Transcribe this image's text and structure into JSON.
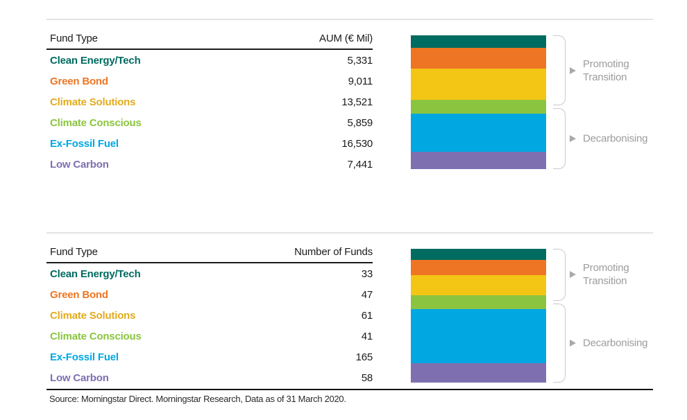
{
  "categories": [
    {
      "label": "Clean Energy/Tech",
      "color": "#006b60",
      "label_color": "#006b60"
    },
    {
      "label": "Green Bond",
      "color": "#ee7523",
      "label_color": "#ee7523"
    },
    {
      "label": "Climate Solutions",
      "color": "#f3c515",
      "label_color": "#e2ab1d"
    },
    {
      "label": "Climate Conscious",
      "color": "#8bc540",
      "label_color": "#8bc540"
    },
    {
      "label": "Ex-Fossil Fuel",
      "color": "#00a7e1",
      "label_color": "#00a7e1"
    },
    {
      "label": "Low Carbon",
      "color": "#7e6fb0",
      "label_color": "#7e6fb0"
    }
  ],
  "chart_data": [
    {
      "type": "bar",
      "stacked": true,
      "title": "",
      "table_columns": [
        "Fund Type",
        "AUM (€ Mil)"
      ],
      "categories": [
        "Clean Energy/Tech",
        "Green Bond",
        "Climate Solutions",
        "Climate Conscious",
        "Ex-Fossil Fuel",
        "Low Carbon"
      ],
      "values": [
        5331,
        9011,
        13521,
        5859,
        16530,
        7441
      ],
      "values_formatted": [
        "5,331",
        "9,011",
        "13,521",
        "5,859",
        "16,530",
        "7,441"
      ],
      "legend_position": "table-left",
      "groups": [
        {
          "label": "Promoting Transition",
          "label_display": "Promoting\nTransition",
          "seg_range": [
            0,
            3.5
          ]
        },
        {
          "label": "Decarbonising",
          "label_display": "Decarbonising",
          "seg_range": [
            3.5,
            6
          ]
        }
      ]
    },
    {
      "type": "bar",
      "stacked": true,
      "title": "",
      "table_columns": [
        "Fund Type",
        "Number of Funds"
      ],
      "categories": [
        "Clean Energy/Tech",
        "Green Bond",
        "Climate Solutions",
        "Climate Conscious",
        "Ex-Fossil Fuel",
        "Low Carbon"
      ],
      "values": [
        33,
        47,
        61,
        41,
        165,
        58
      ],
      "values_formatted": [
        "33",
        "47",
        "61",
        "41",
        "165",
        "58"
      ],
      "legend_position": "table-left",
      "groups": [
        {
          "label": "Promoting Transition",
          "label_display": "Promoting\nTransition",
          "seg_range": [
            0,
            3.5
          ]
        },
        {
          "label": "Decarbonising",
          "label_display": "Decarbonising",
          "seg_range": [
            3.5,
            6
          ]
        }
      ]
    }
  ],
  "source": "Source: Morningstar Direct. Morningstar Research, Data as of 31 March 2020.",
  "colors": {
    "rule_light": "#e3e3e3",
    "rule_header": "#1a1a1a",
    "rule_bottom": "#111111",
    "bracket": "#c9c9c9",
    "arrow": "#a9a9a9",
    "group_label": "#9c9c9c",
    "table_text": "#1a1a1a"
  }
}
